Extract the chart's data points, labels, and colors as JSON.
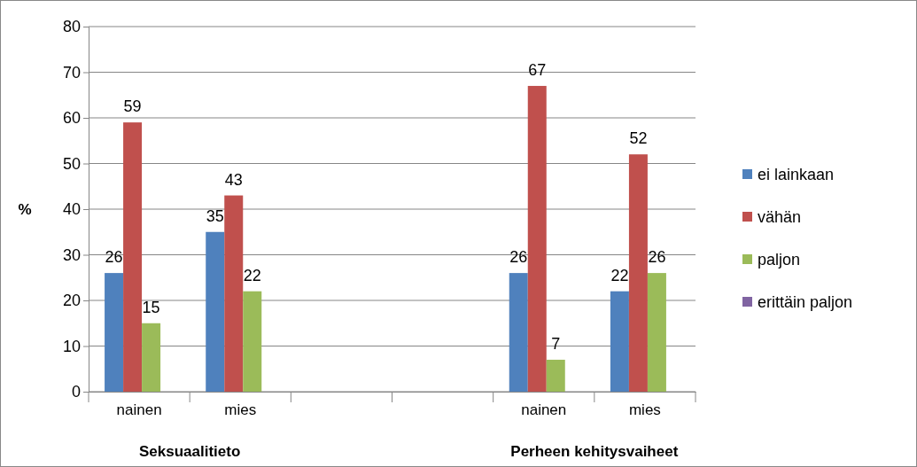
{
  "chart_data": {
    "type": "bar",
    "ylabel": "%",
    "categories": [
      "nainen",
      "mies",
      null,
      null,
      "nainen",
      "mies"
    ],
    "series": [
      {
        "name": "ei lainkaan",
        "color": "#4f81bd",
        "values": [
          26,
          35,
          null,
          null,
          26,
          22
        ]
      },
      {
        "name": "vähän",
        "color": "#c0504d",
        "values": [
          59,
          43,
          null,
          null,
          67,
          52
        ]
      },
      {
        "name": "paljon",
        "color": "#9bbb59",
        "values": [
          15,
          22,
          null,
          null,
          7,
          26
        ]
      },
      {
        "name": "erittäin paljon",
        "color": "#8064a2",
        "values": [
          null,
          null,
          null,
          null,
          null,
          null
        ]
      }
    ],
    "annotations": [
      "Seksuaalitieto",
      "Perheen kehitysvaiheet"
    ],
    "ylim": [
      0,
      80
    ],
    "yticks": [
      0,
      10,
      20,
      30,
      40,
      50,
      60,
      70,
      80
    ],
    "grid": "y",
    "legend": "right",
    "data_labels": true
  }
}
